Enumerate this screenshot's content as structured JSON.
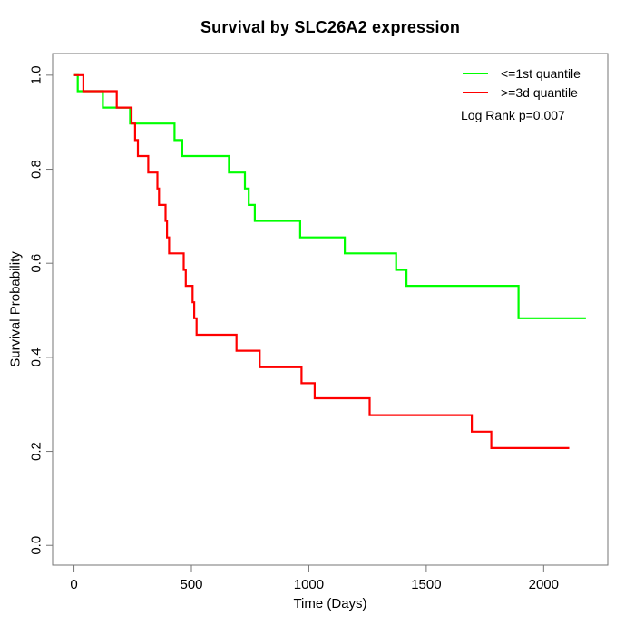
{
  "page": {
    "background": "#ffffff"
  },
  "chart_data": {
    "type": "line",
    "subtype": "kaplan-meier-survival-steps",
    "title": "Survival by SLC26A2 expression",
    "xlabel": "Time (Days)",
    "ylabel": "Survival Probability",
    "x_ticks": [
      0,
      500,
      1000,
      1500,
      2000
    ],
    "y_ticks": [
      {
        "value": 0.0,
        "label": "0.0"
      },
      {
        "value": 0.2,
        "label": "0.2"
      },
      {
        "value": 0.4,
        "label": "0.4"
      },
      {
        "value": 0.6,
        "label": "0.6"
      },
      {
        "value": 0.8,
        "label": "0.8"
      },
      {
        "value": 1.0,
        "label": "1.0"
      }
    ],
    "xlim": [
      -91,
      2273
    ],
    "ylim": [
      -0.042,
      1.046
    ],
    "grid": false,
    "axis_color": "#757575",
    "text_color": "#000000",
    "legend": {
      "position": "top-right",
      "annotation": "Log Rank p=0.007"
    },
    "series": [
      {
        "name": "<=1st quantile",
        "color": "#00ff00",
        "points": [
          [
            0,
            1.0
          ],
          [
            16,
            0.966
          ],
          [
            123,
            0.931
          ],
          [
            239,
            0.897
          ],
          [
            428,
            0.862
          ],
          [
            461,
            0.828
          ],
          [
            660,
            0.793
          ],
          [
            728,
            0.759
          ],
          [
            744,
            0.724
          ],
          [
            770,
            0.69
          ],
          [
            963,
            0.655
          ],
          [
            1153,
            0.621
          ],
          [
            1372,
            0.586
          ],
          [
            1416,
            0.552
          ],
          [
            1893,
            0.483
          ],
          [
            2180,
            0.483
          ]
        ]
      },
      {
        "name": ">=3d quantile",
        "color": "#ff0000",
        "points": [
          [
            0,
            1.0
          ],
          [
            40,
            0.966
          ],
          [
            182,
            0.931
          ],
          [
            245,
            0.897
          ],
          [
            260,
            0.862
          ],
          [
            272,
            0.828
          ],
          [
            316,
            0.793
          ],
          [
            355,
            0.759
          ],
          [
            362,
            0.724
          ],
          [
            390,
            0.69
          ],
          [
            396,
            0.655
          ],
          [
            405,
            0.621
          ],
          [
            467,
            0.586
          ],
          [
            476,
            0.552
          ],
          [
            505,
            0.517
          ],
          [
            512,
            0.483
          ],
          [
            522,
            0.448
          ],
          [
            692,
            0.414
          ],
          [
            791,
            0.379
          ],
          [
            969,
            0.345
          ],
          [
            1025,
            0.313
          ],
          [
            1259,
            0.277
          ],
          [
            1694,
            0.242
          ],
          [
            1777,
            0.207
          ],
          [
            2109,
            0.207
          ]
        ]
      }
    ]
  }
}
